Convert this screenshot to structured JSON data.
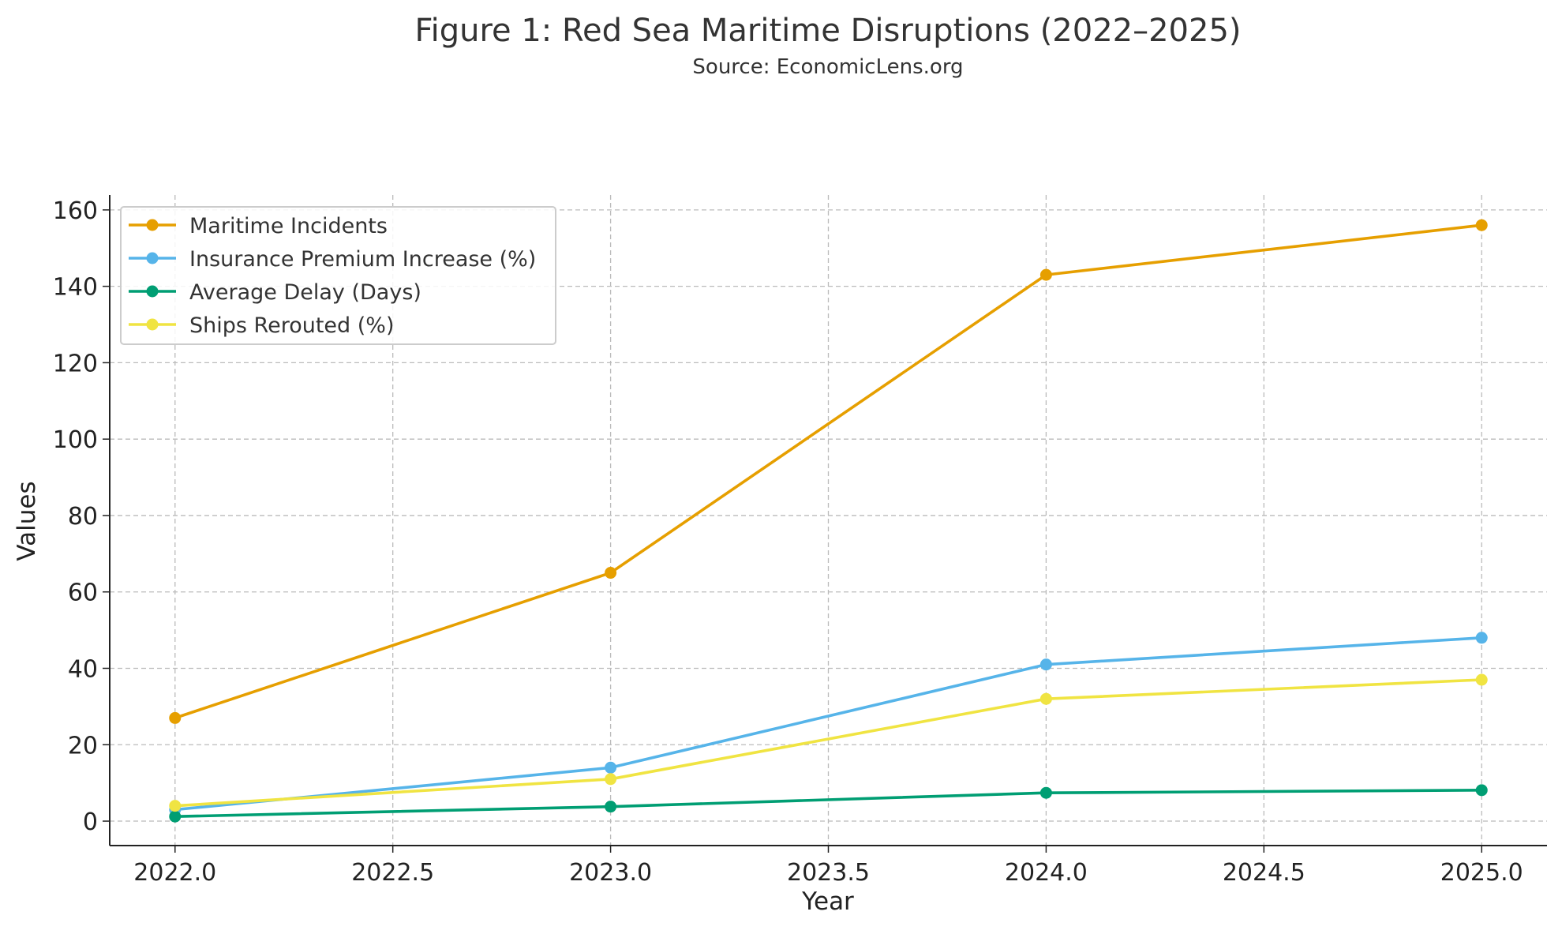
{
  "chart_data": {
    "type": "line",
    "title": "Figure 1: Red Sea Maritime Disruptions (2022–2025)",
    "subtitle": "Source: EconomicLens.org",
    "xlabel": "Year",
    "ylabel": "Values",
    "x": [
      2022,
      2023,
      2024,
      2025
    ],
    "xlim": [
      2021.85,
      2025.15
    ],
    "ylim": [
      -6.4,
      163.9
    ],
    "xticks": [
      2022.0,
      2022.5,
      2023.0,
      2023.5,
      2024.0,
      2024.5,
      2025.0
    ],
    "xtick_labels": [
      "2022.0",
      "2022.5",
      "2023.0",
      "2023.5",
      "2024.0",
      "2024.5",
      "2025.0"
    ],
    "yticks": [
      0,
      20,
      40,
      60,
      80,
      100,
      120,
      140,
      160
    ],
    "ytick_labels": [
      "0",
      "20",
      "40",
      "60",
      "80",
      "100",
      "120",
      "140",
      "160"
    ],
    "grid": true,
    "legend_position": "top-left",
    "series": [
      {
        "name": "Maritime Incidents",
        "color": "#E69F00",
        "values": [
          27,
          65,
          143,
          156
        ]
      },
      {
        "name": "Insurance Premium Increase (%)",
        "color": "#56B4E9",
        "values": [
          3,
          14,
          41,
          48
        ]
      },
      {
        "name": "Average Delay (Days)",
        "color": "#009E73",
        "values": [
          1.2,
          3.8,
          7.4,
          8.1
        ]
      },
      {
        "name": "Ships Rerouted (%)",
        "color": "#F0E442",
        "values": [
          4,
          11,
          32,
          37
        ]
      }
    ]
  }
}
